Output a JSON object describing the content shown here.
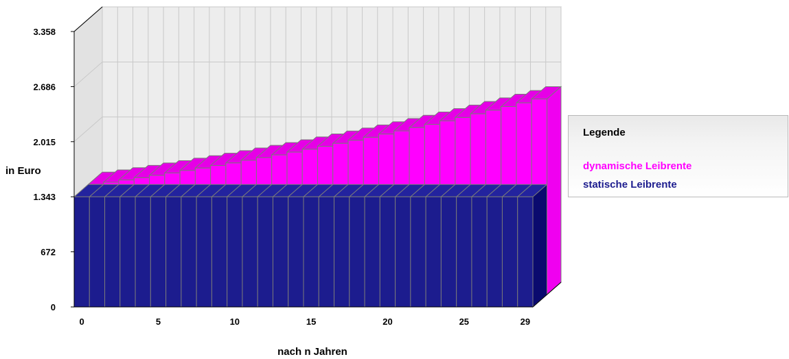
{
  "chart_data": {
    "type": "bar",
    "view": "3d-stacked",
    "title": "",
    "xlabel": "nach n Jahren",
    "ylabel": "in Euro",
    "x_tick_labels": [
      "0",
      "5",
      "10",
      "15",
      "20",
      "25",
      "29"
    ],
    "y_tick_labels": [
      "0",
      "672",
      "1.343",
      "2.015",
      "2.686",
      "3.358"
    ],
    "y_ticks": [
      0,
      672,
      1343,
      2015,
      2686,
      3358
    ],
    "highlighted_y_tick": "1.343",
    "ylim": [
      0,
      3358
    ],
    "categories": [
      0,
      1,
      2,
      3,
      4,
      5,
      6,
      7,
      8,
      9,
      10,
      11,
      12,
      13,
      14,
      15,
      16,
      17,
      18,
      19,
      20,
      21,
      22,
      23,
      24,
      25,
      26,
      27,
      28,
      29
    ],
    "series": [
      {
        "name": "statische Leibrente",
        "color": "#1C1C8E",
        "values": [
          1343,
          1343,
          1343,
          1343,
          1343,
          1343,
          1343,
          1343,
          1343,
          1343,
          1343,
          1343,
          1343,
          1343,
          1343,
          1343,
          1343,
          1343,
          1343,
          1343,
          1343,
          1343,
          1343,
          1343,
          1343,
          1343,
          1343,
          1343,
          1343,
          1343
        ]
      },
      {
        "name": "dynamische Leibrente",
        "color": "#FF00FF",
        "values": [
          1343,
          1370,
          1397,
          1425,
          1454,
          1483,
          1513,
          1543,
          1574,
          1605,
          1637,
          1670,
          1703,
          1737,
          1772,
          1808,
          1844,
          1881,
          1918,
          1957,
          1996,
          2036,
          2076,
          2118,
          2160,
          2204,
          2248,
          2293,
          2338,
          2385
        ]
      }
    ],
    "grid": true,
    "legend_position": "right"
  },
  "legend": {
    "title": "Legende",
    "entries": [
      {
        "label": "dynamische Leibrente",
        "color": "#FF00FF"
      },
      {
        "label": "statische Leibrente",
        "color": "#1C1C8E"
      }
    ]
  },
  "colors": {
    "static_front": "#1C1C8E",
    "static_top": "#23239E",
    "static_side": "#0A0A6E",
    "dynamic_front": "#FF00FF",
    "dynamic_top": "#E600E6",
    "dynamic_side": "#F000F0",
    "bar_stroke": "#7a7a7a",
    "wall": "#E6E6E6",
    "floor": "#FFFFFF",
    "grid": "#C8C8C8",
    "highlight_tick": "#1010D0"
  }
}
